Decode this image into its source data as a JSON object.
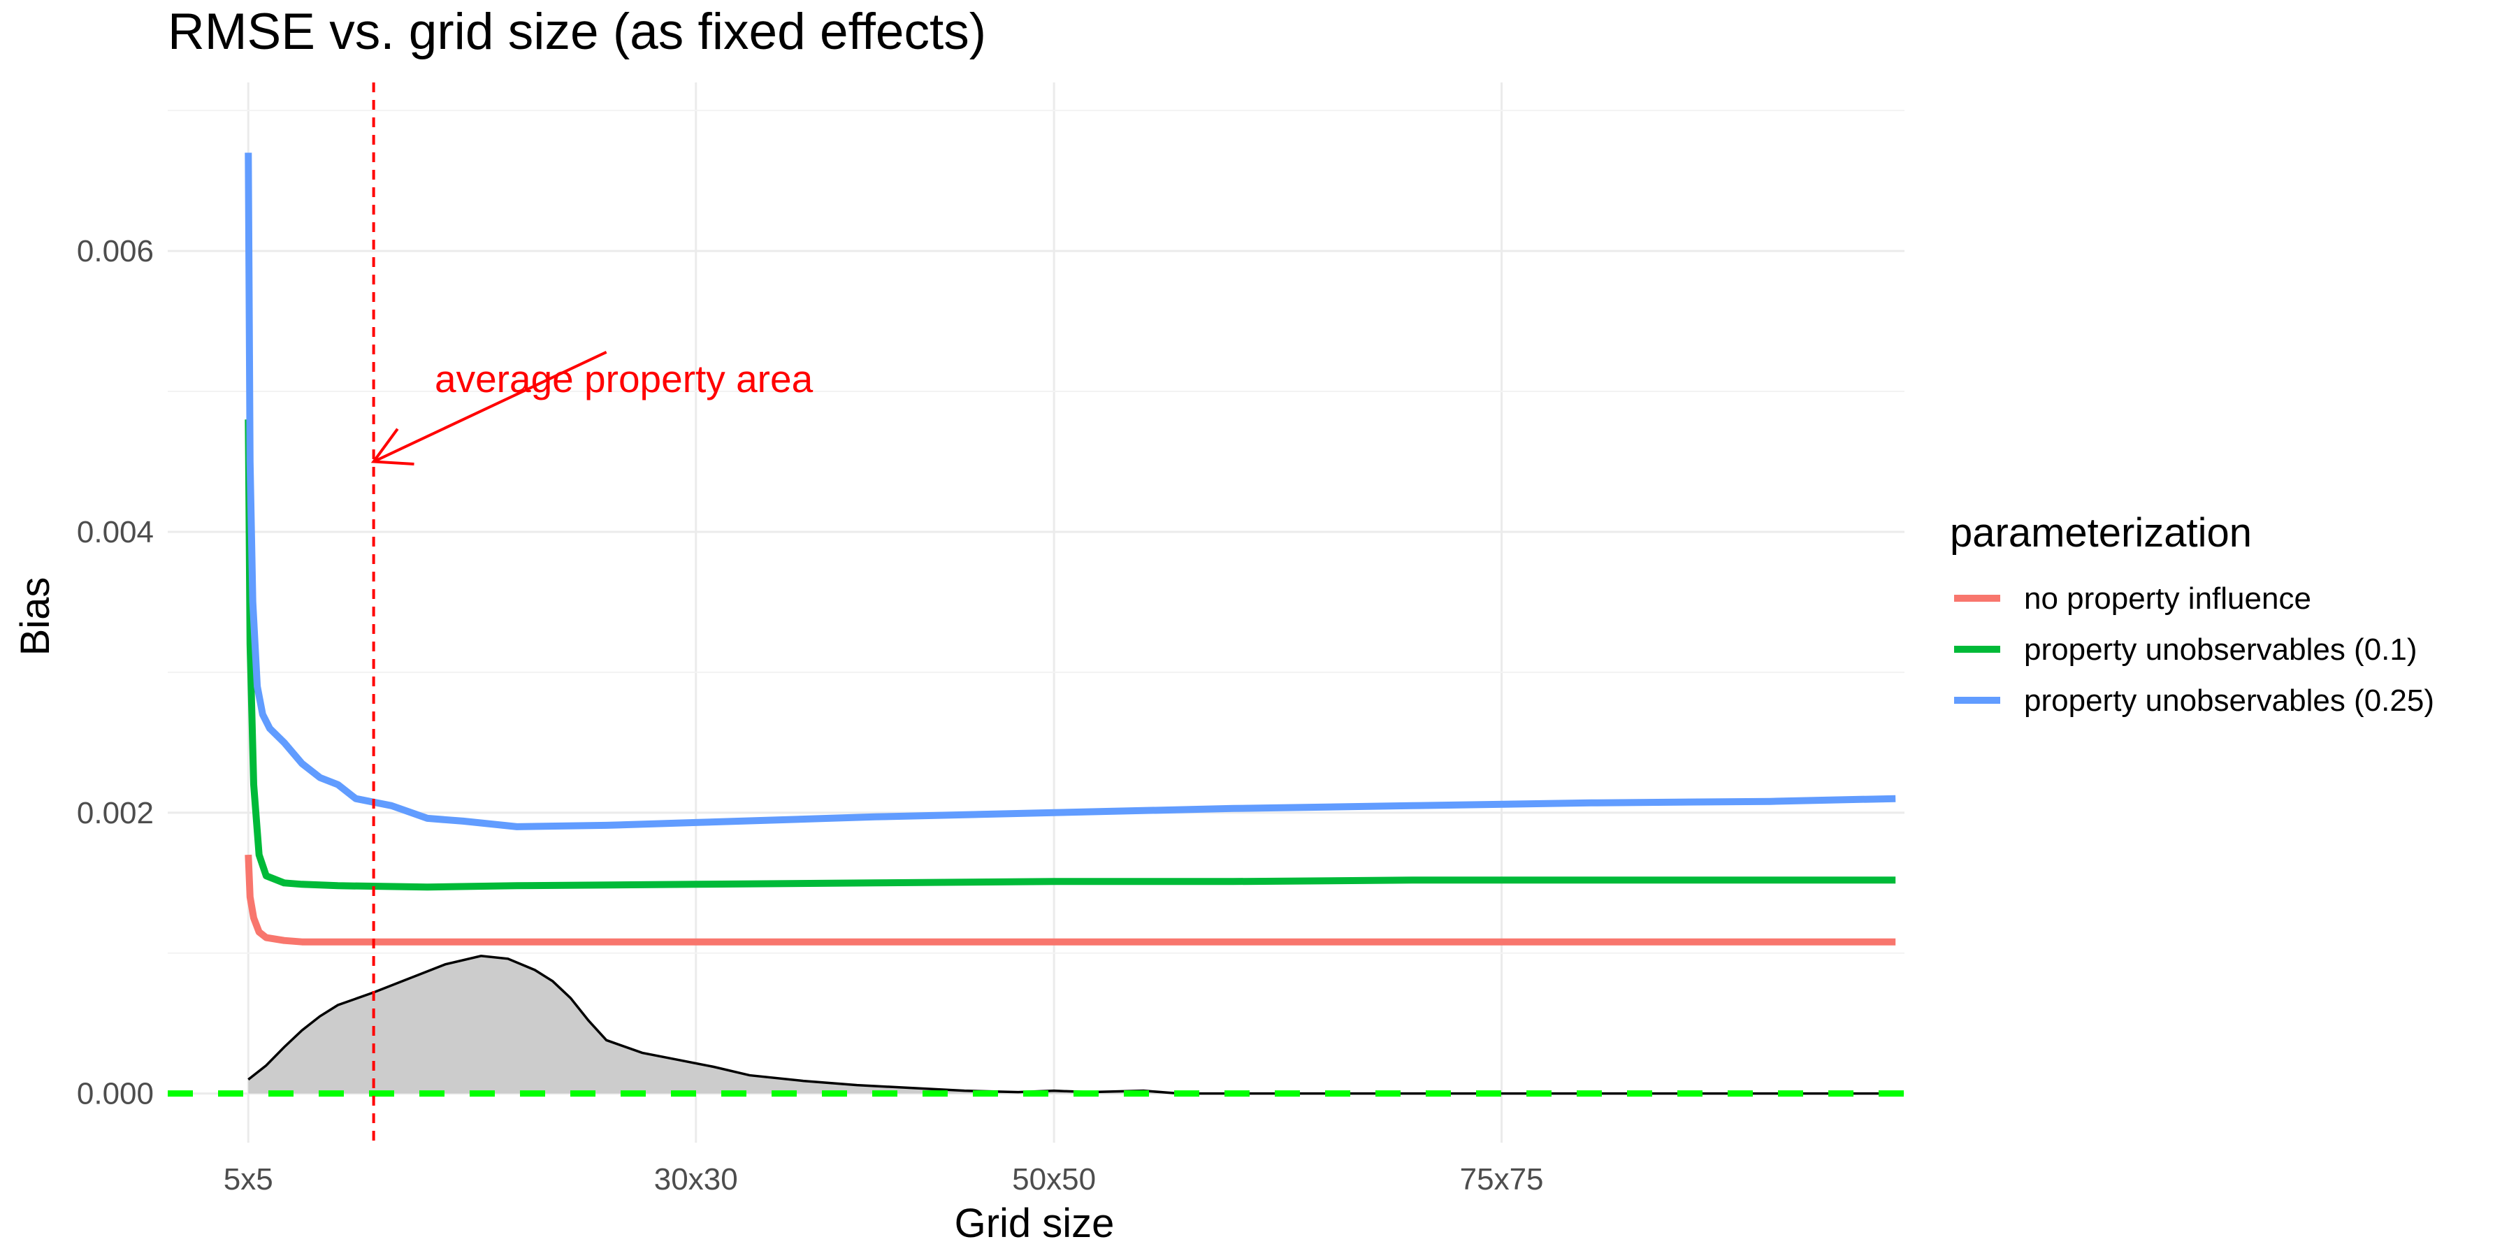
{
  "chart_data": {
    "type": "line",
    "title": "RMSE vs. grid size (as fixed effects)",
    "xlabel": "Grid size",
    "ylabel": "Bias",
    "xlim": [
      0.5,
      97.5
    ],
    "ylim": [
      -0.00035,
      0.0072
    ],
    "x_ticks": [
      {
        "value": 5,
        "label": "5x5"
      },
      {
        "value": 30,
        "label": "30x30"
      },
      {
        "value": 50,
        "label": "50x50"
      },
      {
        "value": 75,
        "label": "75x75"
      }
    ],
    "y_ticks": [
      {
        "value": 0.0,
        "label": "0.000"
      },
      {
        "value": 0.002,
        "label": "0.002"
      },
      {
        "value": 0.004,
        "label": "0.004"
      },
      {
        "value": 0.006,
        "label": "0.006"
      }
    ],
    "legend": {
      "title": "parameterization",
      "position": "right"
    },
    "series": [
      {
        "name": "no property influence",
        "color": "#F8766D",
        "x": [
          5,
          5.1,
          5.3,
          5.6,
          6,
          7,
          8,
          10,
          15,
          20,
          30,
          40,
          50,
          60,
          70,
          80,
          90,
          97
        ],
        "y": [
          0.0017,
          0.0014,
          0.00125,
          0.00115,
          0.00111,
          0.00109,
          0.00108,
          0.00108,
          0.00108,
          0.00108,
          0.00108,
          0.00108,
          0.00108,
          0.00108,
          0.00108,
          0.00108,
          0.00108,
          0.00108
        ]
      },
      {
        "name": "property unobservables (0.1)",
        "color": "#00BA38",
        "x": [
          5,
          5.1,
          5.3,
          5.6,
          6,
          7,
          8,
          10,
          15,
          20,
          30,
          40,
          50,
          60,
          70,
          80,
          90,
          97
        ],
        "y": [
          0.0048,
          0.0032,
          0.0022,
          0.0017,
          0.00155,
          0.0015,
          0.00149,
          0.00148,
          0.00147,
          0.00148,
          0.00149,
          0.0015,
          0.00151,
          0.00151,
          0.00152,
          0.00152,
          0.00152,
          0.00152
        ]
      },
      {
        "name": "property unobservables (0.25)",
        "color": "#619CFF",
        "x": [
          5,
          5.1,
          5.25,
          5.5,
          5.8,
          6.2,
          7,
          8,
          9,
          10,
          11,
          13,
          15,
          17,
          20,
          25,
          30,
          40,
          50,
          60,
          70,
          80,
          90,
          97
        ],
        "y": [
          0.0067,
          0.0045,
          0.0035,
          0.0029,
          0.0027,
          0.0026,
          0.0025,
          0.00235,
          0.00225,
          0.0022,
          0.0021,
          0.00205,
          0.00196,
          0.00194,
          0.0019,
          0.00191,
          0.00193,
          0.00197,
          0.002,
          0.00203,
          0.00205,
          0.00207,
          0.00208,
          0.0021
        ]
      }
    ],
    "density": {
      "x": [
        5,
        6,
        7,
        8,
        9,
        10,
        12,
        14,
        16,
        18,
        19.5,
        21,
        22,
        23,
        24,
        25,
        27,
        29,
        31,
        33,
        36,
        39,
        42,
        45,
        48,
        50,
        52,
        55,
        57,
        60,
        65,
        70,
        80,
        97
      ],
      "y": [
        0.0001,
        0.0002,
        0.00033,
        0.00045,
        0.00055,
        0.00063,
        0.00072,
        0.00082,
        0.00092,
        0.00098,
        0.00096,
        0.00088,
        0.0008,
        0.00068,
        0.00052,
        0.00038,
        0.00029,
        0.00024,
        0.00019,
        0.00013,
        9e-05,
        6e-05,
        4e-05,
        2e-05,
        1e-05,
        2e-05,
        1e-05,
        2e-05,
        0.0,
        0.0,
        0.0,
        0.0,
        0.0,
        0.0
      ],
      "fill": "#CCCCCC",
      "stroke": "#000000"
    },
    "reference_lines": [
      {
        "axis": "y",
        "value": 0.0,
        "style": "dashed",
        "color": "#00FF00"
      },
      {
        "axis": "x",
        "value": 12,
        "style": "dashed",
        "color": "#FF0000"
      }
    ],
    "annotation": {
      "text": "average property area",
      "color": "#FF0000",
      "arrow_to": {
        "x": 12,
        "y": 0.0045
      },
      "arrow_from": {
        "x": 25,
        "y": 0.00528
      }
    },
    "grid": true
  }
}
